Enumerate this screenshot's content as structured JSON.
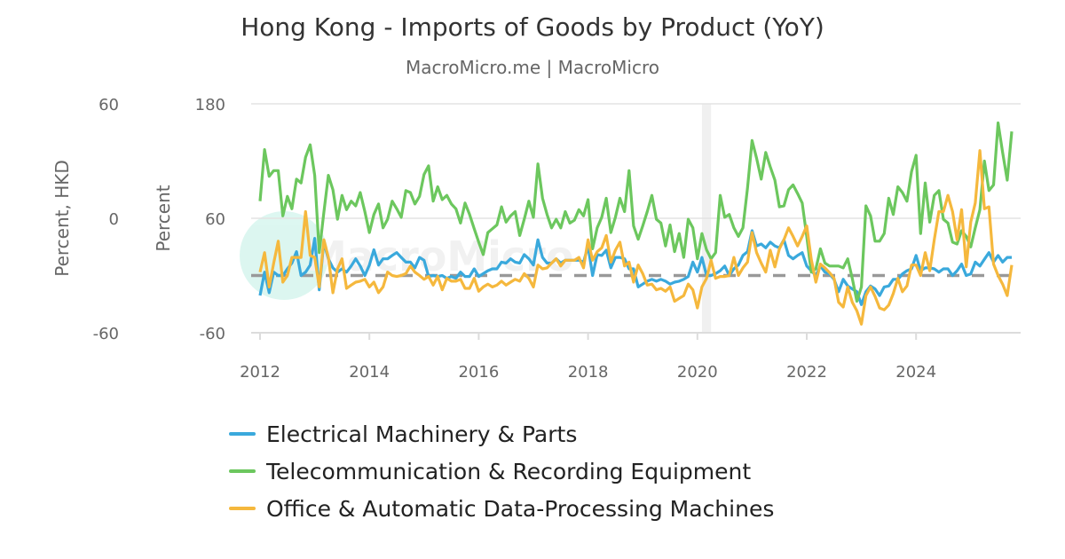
{
  "chart_data": {
    "type": "line",
    "title": "Hong Kong - Imports of Goods by Product (YoY)",
    "subtitle": "MacroMicro.me | MacroMicro",
    "watermark": "MacroMicro",
    "x_start": "2012-01",
    "x_frequency": "monthly",
    "x_ticks": [
      "2012",
      "2014",
      "2016",
      "2018",
      "2020",
      "2022",
      "2024"
    ],
    "y_axes": [
      {
        "label": "Percent, HKD",
        "range": [
          -60,
          60
        ],
        "ticks": [
          "60",
          "0",
          "-60"
        ]
      },
      {
        "label": "Percent",
        "range": [
          -60,
          180
        ],
        "ticks": [
          "180",
          "60",
          "-60"
        ]
      }
    ],
    "reference_line": {
      "value": 0,
      "style": "dashed",
      "color": "#999999"
    },
    "shaded_period": [
      "2020-02",
      "2020-04"
    ],
    "grid": true,
    "legend_position": "bottom",
    "series": [
      {
        "name": "Electrical Machinery & Parts",
        "color": "#3aa9dc",
        "axis": 1,
        "values": [
          -21,
          3.5,
          -18,
          3.5,
          0,
          0,
          7,
          13,
          25,
          0,
          3.5,
          11,
          39,
          -15,
          35,
          17.5,
          8,
          3.5,
          7,
          3.5,
          10,
          17.5,
          10,
          0,
          11,
          27,
          11,
          17.5,
          17.5,
          21,
          24,
          19,
          14,
          14,
          8,
          19,
          16,
          -1,
          0,
          -1,
          0,
          -3,
          -1,
          -3,
          3.5,
          -1,
          -1,
          7,
          -1,
          2,
          5,
          7,
          7,
          14,
          13,
          17.5,
          14,
          13,
          22,
          17.5,
          11,
          37.5,
          19,
          13,
          13,
          17.5,
          13,
          16,
          16,
          16,
          16,
          14,
          31,
          0,
          22,
          21,
          26.5,
          8,
          19,
          19,
          17.5,
          7,
          7,
          -12,
          -9,
          -6,
          -4,
          -6,
          -4,
          -6,
          -9,
          -7,
          -6,
          -4,
          -1,
          14,
          3.5,
          19,
          0,
          0,
          2,
          5,
          10,
          0,
          7,
          11,
          21,
          25,
          47,
          31,
          33,
          29,
          35,
          31,
          29,
          37.5,
          21,
          17.5,
          21,
          24,
          10,
          5,
          0,
          10,
          3.5,
          1.7,
          -4,
          -17,
          -4,
          -11,
          -14,
          -17,
          -30.5,
          -17,
          -11,
          -14,
          -21,
          -12,
          -11,
          -4,
          -4,
          1.7,
          5,
          7,
          21,
          5,
          8,
          8,
          7,
          3.5,
          7,
          7,
          0,
          5,
          12,
          0,
          1.7,
          14,
          10,
          17,
          24,
          14,
          21,
          14,
          19,
          19
        ]
      },
      {
        "name": "Telecommunication & Recording Equipment",
        "color": "#6cc75e",
        "axis": 1,
        "values": [
          78,
          132,
          104,
          110,
          110,
          62.5,
          83,
          70,
          101,
          97,
          124,
          137,
          105,
          24,
          66,
          105,
          90,
          59,
          84,
          69,
          78,
          73,
          87,
          67,
          45,
          64,
          75,
          50,
          59,
          78,
          70,
          61,
          89,
          87,
          75,
          83,
          106,
          115,
          78,
          93,
          79.5,
          84,
          75,
          70,
          55,
          76,
          64,
          49,
          35,
          22,
          45,
          49,
          53,
          72,
          56,
          62.5,
          67,
          42,
          59,
          78,
          61,
          117,
          81,
          64,
          50,
          59,
          50,
          67,
          55,
          58,
          69,
          62.5,
          79.5,
          28,
          50,
          61,
          81,
          45,
          61,
          81,
          67,
          110,
          52,
          38,
          52,
          67,
          84,
          59,
          55,
          31,
          53,
          25,
          44,
          19,
          59,
          50,
          17.5,
          44,
          27,
          17.5,
          24,
          84,
          61,
          64,
          50,
          41,
          50,
          92,
          141.5,
          123,
          101,
          129,
          114,
          100,
          72,
          73,
          90,
          95,
          86,
          76,
          41,
          3.5,
          7,
          28,
          13,
          10,
          10,
          10,
          8,
          17.5,
          -3,
          -27,
          -12,
          73,
          62.5,
          36,
          36,
          44,
          81,
          64,
          93,
          87,
          78,
          109,
          126,
          44,
          97,
          56,
          84,
          89,
          59,
          55,
          35,
          33,
          47,
          41,
          30,
          50,
          69,
          120,
          89,
          95,
          160,
          129,
          100,
          151
        ]
      },
      {
        "name": "Office & Automatic Data-Processing Machines",
        "color": "#f5b83d",
        "axis": 1,
        "values": [
          3.5,
          24,
          -12,
          13,
          36,
          -7,
          0,
          19,
          19,
          19,
          67,
          21,
          19,
          -12,
          37.5,
          19,
          -18,
          7,
          17.5,
          -13.5,
          -10,
          -7,
          -6,
          -4,
          -12,
          -7,
          -18,
          -12,
          3.5,
          0,
          -1,
          0,
          2,
          10,
          3.5,
          0,
          -4,
          -1,
          -10,
          -1,
          -15,
          -3,
          -6,
          -6,
          -4,
          -13.5,
          -13.5,
          -3,
          -16.5,
          -12,
          -9,
          -12,
          -10,
          -6,
          -10,
          -7,
          -4,
          -6,
          2,
          -3,
          -12,
          11,
          7,
          8,
          13,
          17.5,
          10,
          16,
          16,
          16,
          19,
          8,
          37.5,
          16,
          25,
          29,
          42,
          14,
          26.5,
          35,
          10,
          14,
          -7,
          11,
          2,
          -10,
          -9,
          -15,
          -13.5,
          -16.5,
          -12,
          -27,
          -24,
          -21,
          -9,
          -15,
          -34,
          -12,
          -3,
          16,
          -3,
          -1,
          -1,
          0,
          19,
          0,
          8,
          14,
          45,
          24,
          13,
          3.5,
          26.5,
          9,
          28,
          37.5,
          50,
          41,
          31,
          41,
          52,
          17,
          -7,
          12,
          8,
          3,
          -3,
          -28,
          -33,
          -12,
          -28,
          -37,
          -51,
          -21,
          -12,
          -22,
          -34,
          -36,
          -31,
          -19,
          -3,
          -17,
          -11,
          11,
          11,
          0,
          24,
          5,
          37.5,
          67,
          67,
          84,
          67,
          37.5,
          69,
          9,
          56,
          76,
          131,
          70,
          72,
          12,
          0,
          -9,
          -21,
          11
        ]
      }
    ]
  }
}
